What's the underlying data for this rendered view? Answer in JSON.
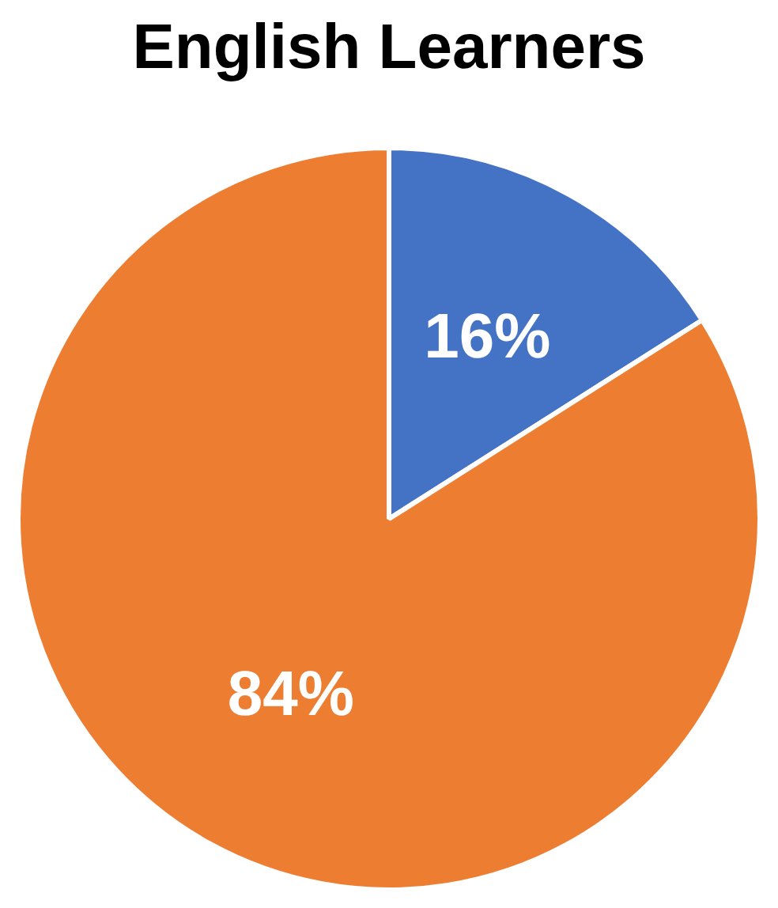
{
  "chart_data": {
    "type": "pie",
    "title": "English Learners",
    "categories": [
      null,
      null
    ],
    "values": [
      16,
      84
    ],
    "colors": [
      "#4472c4",
      "#ed7d31"
    ],
    "value_labels": [
      "16%",
      "84%"
    ],
    "legend": false
  }
}
